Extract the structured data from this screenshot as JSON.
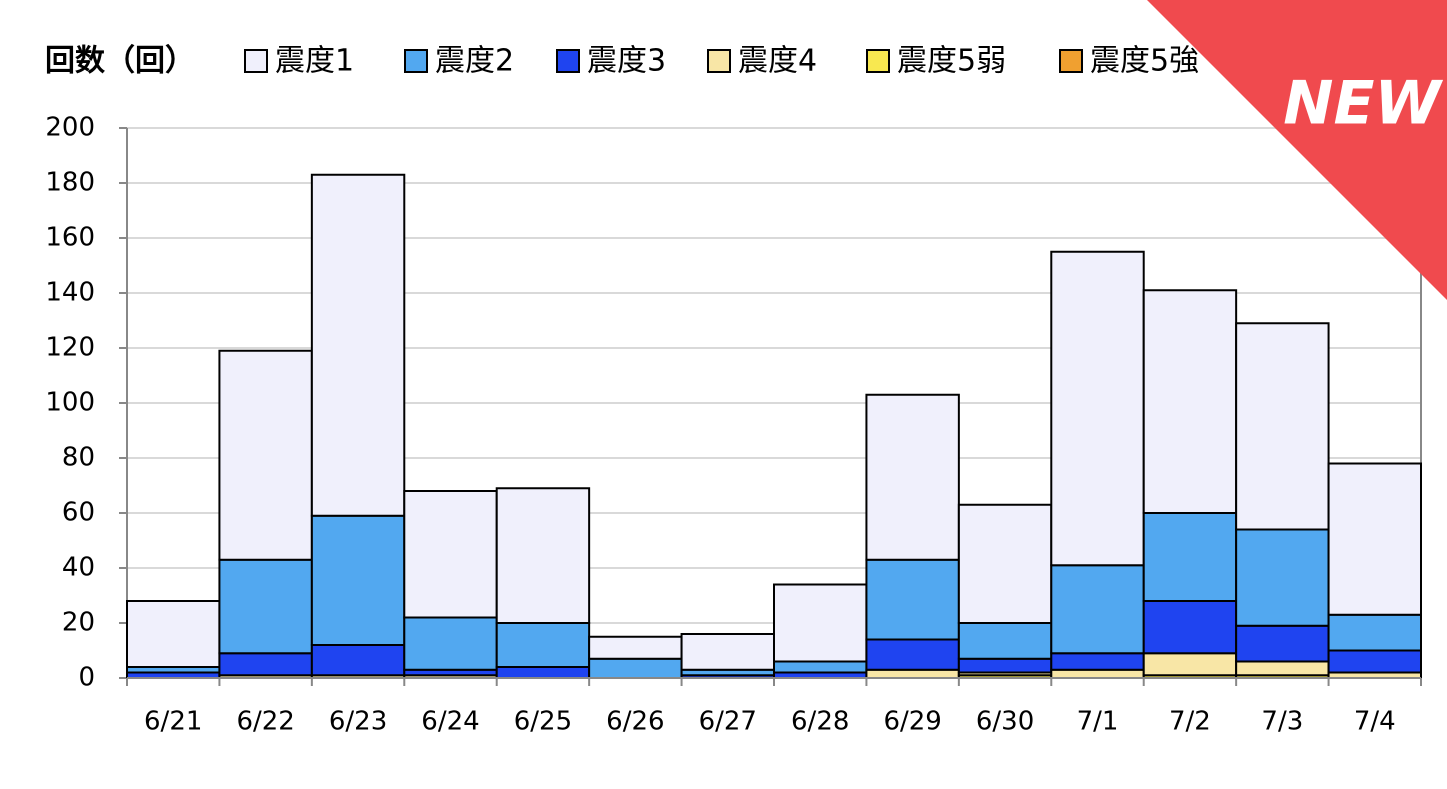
{
  "chart_data": {
    "type": "stacked_bar",
    "y_label": "回数（回）",
    "categories": [
      "6/21",
      "6/22",
      "6/23",
      "6/24",
      "6/25",
      "6/26",
      "6/27",
      "6/28",
      "6/29",
      "6/30",
      "7/1",
      "7/2",
      "7/3",
      "7/4"
    ],
    "series": [
      {
        "name": "震度1",
        "color": "#f0f0fc",
        "values": [
          24,
          76,
          124,
          46,
          49,
          8,
          13,
          28,
          60,
          43,
          114,
          81,
          75,
          55
        ]
      },
      {
        "name": "震度2",
        "color": "#52a8f0",
        "values": [
          2,
          34,
          47,
          19,
          16,
          7,
          2,
          4,
          29,
          13,
          32,
          32,
          35,
          13
        ]
      },
      {
        "name": "震度3",
        "color": "#1f44f0",
        "values": [
          2,
          8,
          11,
          2,
          4,
          0,
          1,
          2,
          11,
          5,
          6,
          19,
          13,
          8
        ]
      },
      {
        "name": "震度4",
        "color": "#f8e6a6",
        "values": [
          0,
          1,
          1,
          1,
          0,
          0,
          0,
          0,
          3,
          1,
          3,
          8,
          5,
          2
        ]
      },
      {
        "name": "震度5弱",
        "color": "#f8e850",
        "values": [
          0,
          0,
          0,
          0,
          0,
          0,
          0,
          0,
          0,
          1,
          0,
          1,
          1,
          0
        ]
      },
      {
        "name": "震度5強",
        "color": "#f0a030",
        "values": [
          0,
          0,
          0,
          0,
          0,
          0,
          0,
          0,
          0,
          0,
          0,
          0,
          0,
          0
        ]
      }
    ],
    "ylim": [
      0,
      200
    ],
    "yticks": [
      0,
      20,
      40,
      60,
      80,
      100,
      120,
      140,
      160,
      180,
      200
    ],
    "grid": true
  },
  "badge": "NEW"
}
